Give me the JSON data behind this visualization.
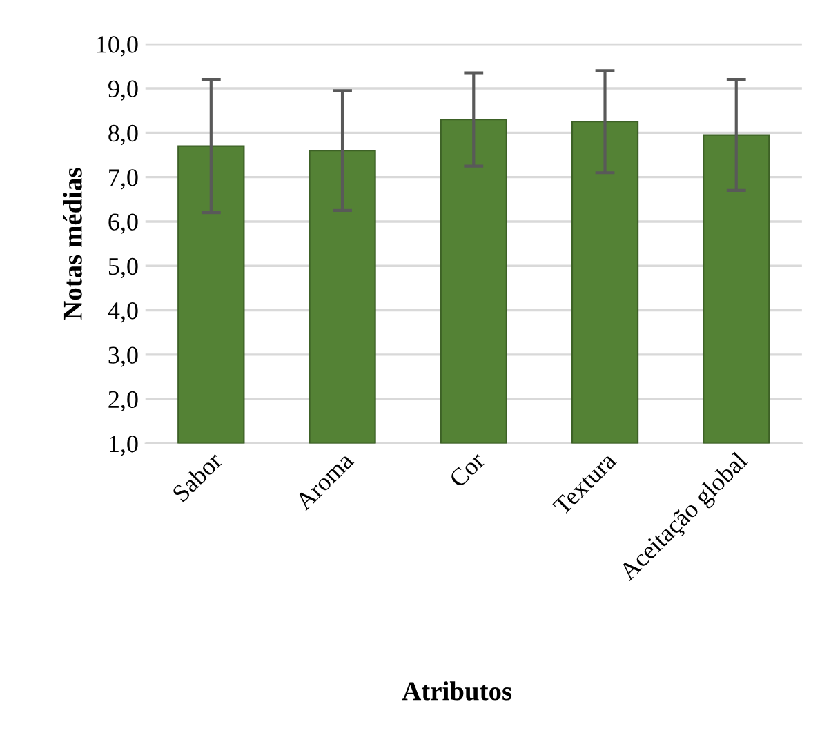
{
  "chart_data": {
    "type": "bar",
    "xlabel": "Atributos",
    "ylabel": "Notas médias",
    "categories": [
      "Sabor",
      "Aroma",
      "Cor",
      "Textura",
      "Aceitação global"
    ],
    "values": [
      7.7,
      7.6,
      8.3,
      8.25,
      7.95
    ],
    "errors": [
      1.5,
      1.35,
      1.05,
      1.15,
      1.25
    ],
    "color": "#548235",
    "ylim": [
      1,
      10
    ],
    "yticks": [
      {
        "value": 1,
        "label": "1,0"
      },
      {
        "value": 2,
        "label": "2,0"
      },
      {
        "value": 3,
        "label": "3,0"
      },
      {
        "value": 4,
        "label": "4,0"
      },
      {
        "value": 5,
        "label": "5,0"
      },
      {
        "value": 6,
        "label": "6,0"
      },
      {
        "value": 7,
        "label": "7,0"
      },
      {
        "value": 8,
        "label": "8,0"
      },
      {
        "value": 9,
        "label": "9,0"
      },
      {
        "value": 10,
        "label": "10,0"
      }
    ],
    "grid": "y"
  }
}
